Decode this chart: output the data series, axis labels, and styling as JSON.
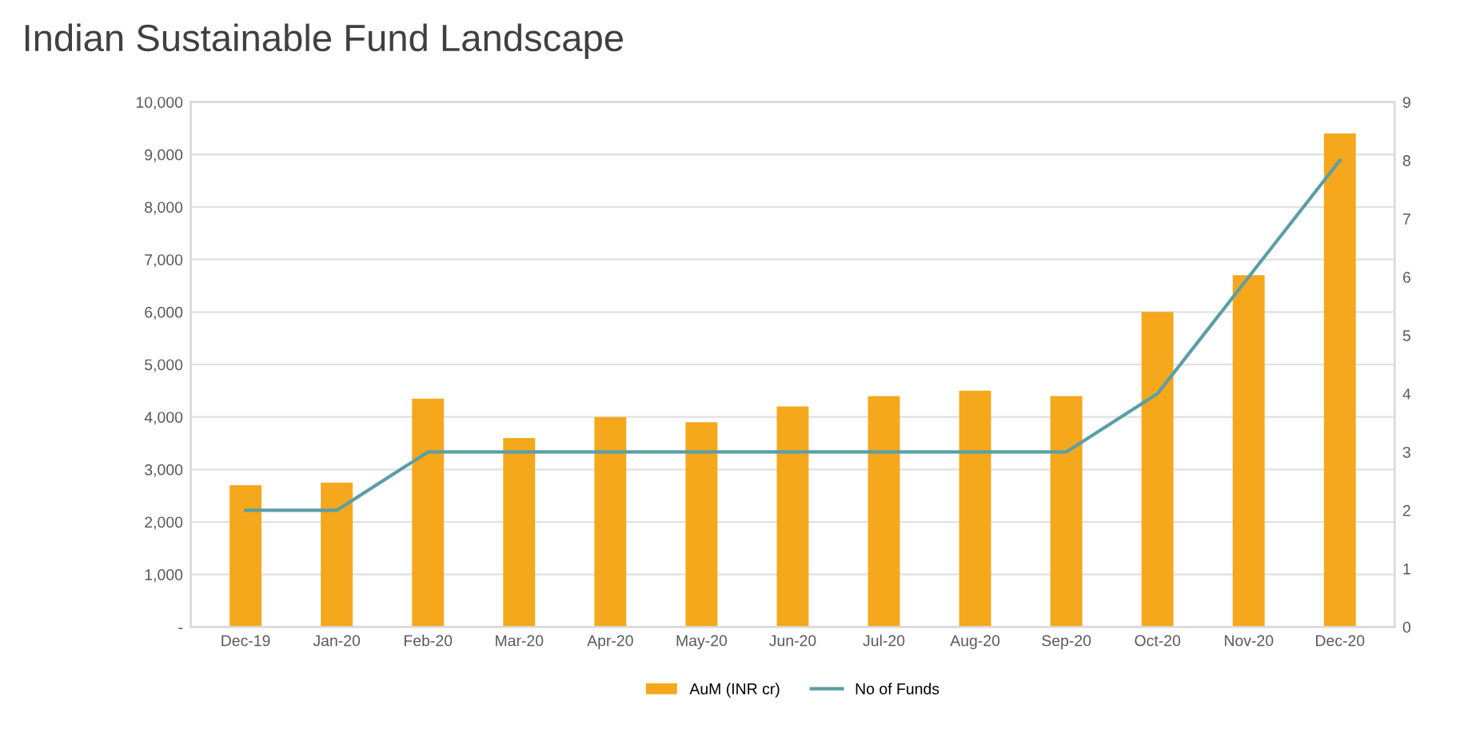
{
  "chart_data": {
    "type": "bar",
    "title": "Indian Sustainable Fund Landscape",
    "categories": [
      "Dec-19",
      "Jan-20",
      "Feb-20",
      "Mar-20",
      "Apr-20",
      "May-20",
      "Jun-20",
      "Jul-20",
      "Aug-20",
      "Sep-20",
      "Oct-20",
      "Nov-20",
      "Dec-20"
    ],
    "series": [
      {
        "name": "AuM (INR cr)",
        "color": "#f5a81c",
        "values": [
          2700,
          2750,
          4350,
          3600,
          4000,
          3900,
          4200,
          4400,
          4500,
          4400,
          6000,
          6700,
          9400
        ]
      },
      {
        "name": "No of Funds",
        "type": "line",
        "axis": "y2",
        "color": "#5b9ea6",
        "values": [
          2,
          2,
          3,
          3,
          3,
          3,
          3,
          3,
          3,
          3,
          4,
          6,
          8
        ]
      }
    ],
    "ylim": [
      0,
      10000
    ],
    "yticks": [
      {
        "value": 0,
        "label": "-"
      },
      {
        "value": 1000,
        "label": "1,000"
      },
      {
        "value": 2000,
        "label": "2,000"
      },
      {
        "value": 3000,
        "label": "3,000"
      },
      {
        "value": 4000,
        "label": "4,000"
      },
      {
        "value": 5000,
        "label": "5,000"
      },
      {
        "value": 6000,
        "label": "6,000"
      },
      {
        "value": 7000,
        "label": "7,000"
      },
      {
        "value": 8000,
        "label": "8,000"
      },
      {
        "value": 9000,
        "label": "9,000"
      },
      {
        "value": 10000,
        "label": "10,000"
      }
    ],
    "y2lim": [
      0,
      9
    ],
    "y2ticks": [
      0,
      1,
      2,
      3,
      4,
      5,
      6,
      7,
      8,
      9
    ],
    "grid": "y",
    "legend": "bottom",
    "marker": "none",
    "line_style": "solid"
  }
}
